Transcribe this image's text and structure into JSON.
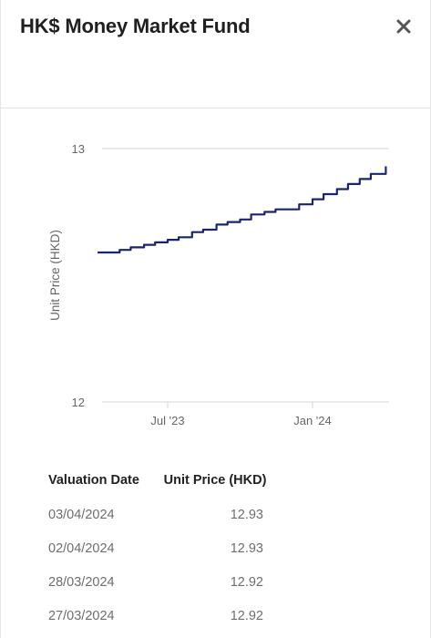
{
  "header": {
    "title": "HK$ Money Market Fund"
  },
  "chart_data": {
    "type": "line",
    "ylabel": "Unit Price (HKD)",
    "xlabel": "",
    "y_ticks": [
      "13",
      "12"
    ],
    "ylim": [
      12,
      13
    ],
    "x_ticks": [
      "Jul '23",
      "Jan '24"
    ],
    "line_color": "#1a2470",
    "series": [
      {
        "x": [
          "2023-04-03",
          "2023-04-15",
          "2023-05-01",
          "2023-05-15",
          "2023-06-01",
          "2023-06-15",
          "2023-07-01",
          "2023-07-15",
          "2023-08-01",
          "2023-08-15",
          "2023-09-01",
          "2023-09-15",
          "2023-10-01",
          "2023-10-15",
          "2023-11-01",
          "2023-11-15",
          "2023-12-01",
          "2023-12-15",
          "2024-01-01",
          "2024-01-15",
          "2024-02-01",
          "2024-02-15",
          "2024-03-01",
          "2024-03-15",
          "2024-04-03"
        ],
        "values": [
          12.59,
          12.59,
          12.6,
          12.61,
          12.62,
          12.63,
          12.64,
          12.65,
          12.67,
          12.68,
          12.7,
          12.71,
          12.72,
          12.74,
          12.75,
          12.76,
          12.76,
          12.78,
          12.8,
          12.82,
          12.84,
          12.86,
          12.88,
          12.9,
          12.93
        ]
      }
    ]
  },
  "table": {
    "headers": [
      "Valuation Date",
      "Unit Price (HKD)"
    ],
    "rows": [
      {
        "date": "03/04/2024",
        "price": "12.93"
      },
      {
        "date": "02/04/2024",
        "price": "12.93"
      },
      {
        "date": "28/03/2024",
        "price": "12.92"
      },
      {
        "date": "27/03/2024",
        "price": "12.92"
      }
    ]
  },
  "colors": {
    "line": "#1a2470",
    "grid": "#d6d6d6",
    "axis_text": "#666666"
  },
  "icons": {
    "close": "close-icon"
  }
}
